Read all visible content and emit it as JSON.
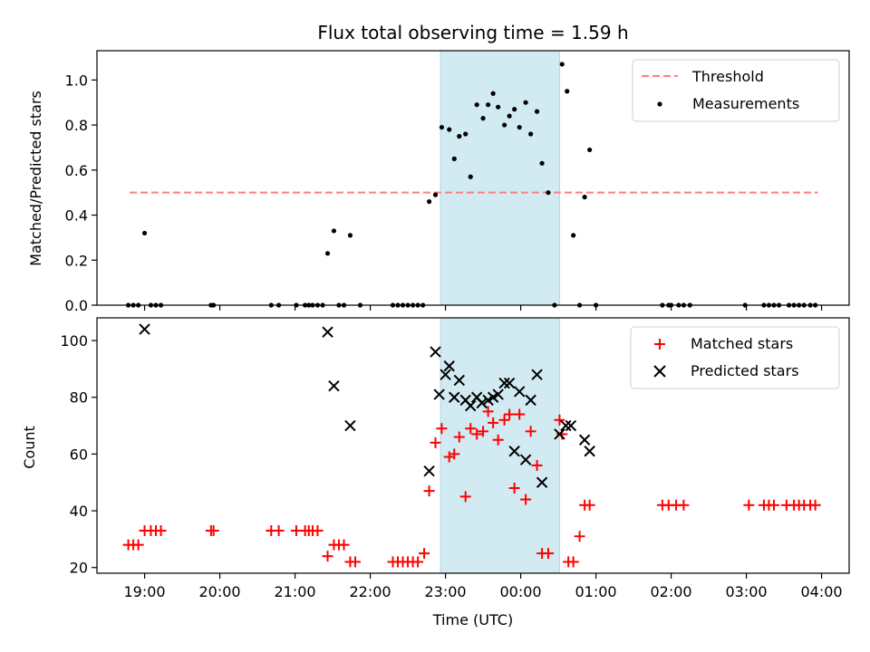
{
  "figure": {
    "title": "Flux total observing time = 1.59 h"
  },
  "chart_data": [
    {
      "type": "scatter",
      "ylabel": "Matched/Predicted stars",
      "xlabel": "",
      "xlim": [
        "18:22",
        "04:22"
      ],
      "ylim": [
        0,
        1.13
      ],
      "yticks": [
        0.0,
        0.2,
        0.4,
        0.6,
        0.8,
        1.0
      ],
      "ytick_labels": [
        "0.0",
        "0.2",
        "0.4",
        "0.6",
        "0.8",
        "1.0"
      ],
      "xticks": [
        "19:00",
        "20:00",
        "21:00",
        "22:00",
        "23:00",
        "00:00",
        "01:00",
        "02:00",
        "03:00",
        "04:00"
      ],
      "show_xtick_labels": false,
      "legend": {
        "position": "top-right",
        "entries": [
          "Threshold",
          "Measurements"
        ]
      },
      "shaded_span": {
        "start": "22:56",
        "end": "00:31",
        "color": "#add8e6"
      },
      "series": [
        {
          "name": "Threshold",
          "kind": "hline",
          "y": 0.5,
          "x_range": [
            "18:48",
            "03:57"
          ],
          "color": "#ff7f7f"
        },
        {
          "name": "Measurements",
          "kind": "scatter",
          "color": "#000000",
          "points": [
            [
              "18:47",
              0
            ],
            [
              "18:51",
              0
            ],
            [
              "18:55",
              0
            ],
            [
              "19:00",
              0.32
            ],
            [
              "19:05",
              0
            ],
            [
              "19:09",
              0
            ],
            [
              "19:13",
              0
            ],
            [
              "19:53",
              0
            ],
            [
              "19:55",
              0
            ],
            [
              "20:41",
              0
            ],
            [
              "20:47",
              0
            ],
            [
              "21:01",
              0
            ],
            [
              "21:08",
              0
            ],
            [
              "21:11",
              0
            ],
            [
              "21:14",
              0
            ],
            [
              "21:18",
              0
            ],
            [
              "21:22",
              0
            ],
            [
              "21:26",
              0.23
            ],
            [
              "21:31",
              0.33
            ],
            [
              "21:35",
              0
            ],
            [
              "21:39",
              0
            ],
            [
              "21:44",
              0.31
            ],
            [
              "21:52",
              0
            ],
            [
              "22:18",
              0
            ],
            [
              "22:22",
              0
            ],
            [
              "22:26",
              0
            ],
            [
              "22:30",
              0
            ],
            [
              "22:34",
              0
            ],
            [
              "22:38",
              0
            ],
            [
              "22:42",
              0
            ],
            [
              "22:47",
              0.46
            ],
            [
              "22:52",
              0.49
            ],
            [
              "22:57",
              0.79
            ],
            [
              "23:03",
              0.78
            ],
            [
              "23:07",
              0.65
            ],
            [
              "23:11",
              0.75
            ],
            [
              "23:16",
              0.76
            ],
            [
              "23:20",
              0.57
            ],
            [
              "23:25",
              0.89
            ],
            [
              "23:30",
              0.83
            ],
            [
              "23:34",
              0.89
            ],
            [
              "23:38",
              0.94
            ],
            [
              "23:42",
              0.88
            ],
            [
              "23:47",
              0.8
            ],
            [
              "23:51",
              0.84
            ],
            [
              "23:55",
              0.87
            ],
            [
              "23:59",
              0.79
            ],
            [
              "00:04",
              0.9
            ],
            [
              "00:08",
              0.76
            ],
            [
              "00:13",
              0.86
            ],
            [
              "00:17",
              0.63
            ],
            [
              "00:22",
              0.5
            ],
            [
              "00:27",
              0
            ],
            [
              "00:33",
              1.07
            ],
            [
              "00:37",
              0.95
            ],
            [
              "00:42",
              0.31
            ],
            [
              "00:47",
              0
            ],
            [
              "00:51",
              0.48
            ],
            [
              "00:55",
              0.69
            ],
            [
              "01:00",
              0
            ],
            [
              "01:53",
              0
            ],
            [
              "01:58",
              0
            ],
            [
              "02:00",
              0
            ],
            [
              "02:06",
              0
            ],
            [
              "02:10",
              0
            ],
            [
              "02:15",
              0
            ],
            [
              "02:59",
              0
            ],
            [
              "03:14",
              0
            ],
            [
              "03:18",
              0
            ],
            [
              "03:22",
              0
            ],
            [
              "03:26",
              0
            ],
            [
              "03:34",
              0
            ],
            [
              "03:38",
              0
            ],
            [
              "03:42",
              0
            ],
            [
              "03:46",
              0
            ],
            [
              "03:51",
              0
            ],
            [
              "03:55",
              0
            ]
          ]
        }
      ]
    },
    {
      "type": "scatter",
      "ylabel": "Count",
      "xlabel": "Time (UTC)",
      "xlim": [
        "18:22",
        "04:22"
      ],
      "ylim": [
        18,
        108
      ],
      "yticks": [
        20,
        40,
        60,
        80,
        100
      ],
      "ytick_labels": [
        "20",
        "40",
        "60",
        "80",
        "100"
      ],
      "xticks": [
        "19:00",
        "20:00",
        "21:00",
        "22:00",
        "23:00",
        "00:00",
        "01:00",
        "02:00",
        "03:00",
        "04:00"
      ],
      "xtick_labels": [
        "19:00",
        "20:00",
        "21:00",
        "22:00",
        "23:00",
        "00:00",
        "01:00",
        "02:00",
        "03:00",
        "04:00"
      ],
      "legend": {
        "position": "top-right",
        "entries": [
          "Matched stars",
          "Predicted stars"
        ]
      },
      "shaded_span": {
        "start": "22:56",
        "end": "00:31",
        "color": "#add8e6"
      },
      "series": [
        {
          "name": "Matched stars",
          "kind": "scatter",
          "marker": "+",
          "color": "#ff0000",
          "points": [
            [
              "18:47",
              28
            ],
            [
              "18:51",
              28
            ],
            [
              "18:55",
              28
            ],
            [
              "19:00",
              33
            ],
            [
              "19:05",
              33
            ],
            [
              "19:09",
              33
            ],
            [
              "19:13",
              33
            ],
            [
              "19:53",
              33
            ],
            [
              "19:55",
              33
            ],
            [
              "20:41",
              33
            ],
            [
              "20:47",
              33
            ],
            [
              "21:01",
              33
            ],
            [
              "21:08",
              33
            ],
            [
              "21:11",
              33
            ],
            [
              "21:14",
              33
            ],
            [
              "21:18",
              33
            ],
            [
              "21:26",
              24
            ],
            [
              "21:31",
              28
            ],
            [
              "21:35",
              28
            ],
            [
              "21:39",
              28
            ],
            [
              "21:44",
              22
            ],
            [
              "21:48",
              22
            ],
            [
              "22:18",
              22
            ],
            [
              "22:22",
              22
            ],
            [
              "22:26",
              22
            ],
            [
              "22:30",
              22
            ],
            [
              "22:34",
              22
            ],
            [
              "22:38",
              22
            ],
            [
              "22:43",
              25
            ],
            [
              "22:47",
              47
            ],
            [
              "22:52",
              64
            ],
            [
              "22:57",
              69
            ],
            [
              "23:03",
              59
            ],
            [
              "23:07",
              60
            ],
            [
              "23:11",
              66
            ],
            [
              "23:16",
              45
            ],
            [
              "23:20",
              69
            ],
            [
              "23:25",
              67
            ],
            [
              "23:30",
              68
            ],
            [
              "23:34",
              75
            ],
            [
              "23:38",
              71
            ],
            [
              "23:42",
              65
            ],
            [
              "23:47",
              72
            ],
            [
              "23:51",
              74
            ],
            [
              "23:55",
              48
            ],
            [
              "23:59",
              74
            ],
            [
              "00:04",
              44
            ],
            [
              "00:08",
              68
            ],
            [
              "00:13",
              56
            ],
            [
              "00:17",
              25
            ],
            [
              "00:22",
              25
            ],
            [
              "00:31",
              72
            ],
            [
              "00:33",
              67
            ],
            [
              "00:38",
              22
            ],
            [
              "00:42",
              22
            ],
            [
              "00:47",
              31
            ],
            [
              "00:51",
              42
            ],
            [
              "00:55",
              42
            ],
            [
              "01:53",
              42
            ],
            [
              "01:58",
              42
            ],
            [
              "02:04",
              42
            ],
            [
              "02:10",
              42
            ],
            [
              "03:02",
              42
            ],
            [
              "03:14",
              42
            ],
            [
              "03:18",
              42
            ],
            [
              "03:22",
              42
            ],
            [
              "03:32",
              42
            ],
            [
              "03:38",
              42
            ],
            [
              "03:42",
              42
            ],
            [
              "03:46",
              42
            ],
            [
              "03:51",
              42
            ],
            [
              "03:55",
              42
            ]
          ]
        },
        {
          "name": "Predicted stars",
          "kind": "scatter",
          "marker": "x",
          "color": "#000000",
          "points": [
            [
              "19:00",
              104
            ],
            [
              "21:26",
              103
            ],
            [
              "21:31",
              84
            ],
            [
              "21:44",
              70
            ],
            [
              "22:47",
              54
            ],
            [
              "22:52",
              96
            ],
            [
              "22:55",
              81
            ],
            [
              "23:00",
              88
            ],
            [
              "23:03",
              91
            ],
            [
              "23:07",
              80
            ],
            [
              "23:11",
              86
            ],
            [
              "23:16",
              79
            ],
            [
              "23:20",
              77
            ],
            [
              "23:25",
              80
            ],
            [
              "23:29",
              78
            ],
            [
              "23:34",
              79
            ],
            [
              "23:38",
              80
            ],
            [
              "23:42",
              81
            ],
            [
              "23:47",
              85
            ],
            [
              "23:51",
              85
            ],
            [
              "23:55",
              61
            ],
            [
              "23:59",
              82
            ],
            [
              "00:04",
              58
            ],
            [
              "00:08",
              79
            ],
            [
              "00:13",
              88
            ],
            [
              "00:17",
              50
            ],
            [
              "00:31",
              67
            ],
            [
              "00:36",
              70
            ],
            [
              "00:40",
              70
            ],
            [
              "00:51",
              65
            ],
            [
              "00:55",
              61
            ]
          ]
        }
      ]
    }
  ]
}
